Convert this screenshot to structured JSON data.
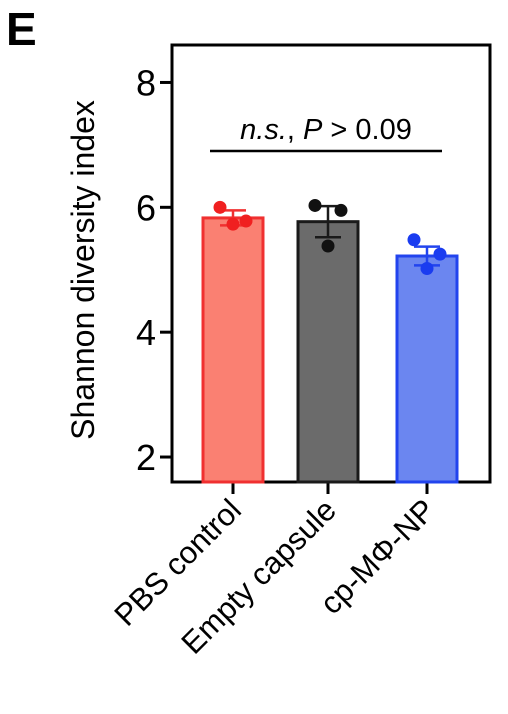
{
  "panel_label": "E",
  "chart_data": {
    "type": "bar",
    "categories": [
      "PBS control",
      "Empty capsule",
      "cp-MΦ-NP"
    ],
    "values": [
      5.83,
      5.77,
      5.22
    ],
    "sem": [
      0.12,
      0.25,
      0.15
    ],
    "points": [
      [
        6.0,
        5.78,
        5.73
      ],
      [
        6.03,
        5.95,
        5.38
      ],
      [
        5.48,
        5.25,
        5.02
      ]
    ],
    "colors": {
      "fill": [
        "#fa8072",
        "#6b6b6b",
        "#6b86f0"
      ],
      "edge": [
        "#f03030",
        "#1a1a1a",
        "#2244ee"
      ],
      "point": [
        "#f02020",
        "#111111",
        "#1a3cf0"
      ]
    },
    "ylabel": "Shannon diversity index",
    "xlabel": "",
    "ylim": [
      1.6,
      8.6
    ],
    "yticks": [
      "2",
      "4",
      "6",
      "8"
    ],
    "ytick_values": [
      2,
      4,
      6,
      8
    ],
    "annotation": {
      "text_italic": "n.s.",
      "text_sep": ", ",
      "text_p": "P",
      "text_rest": " > 0.09"
    },
    "grid": false,
    "legend": "none"
  }
}
